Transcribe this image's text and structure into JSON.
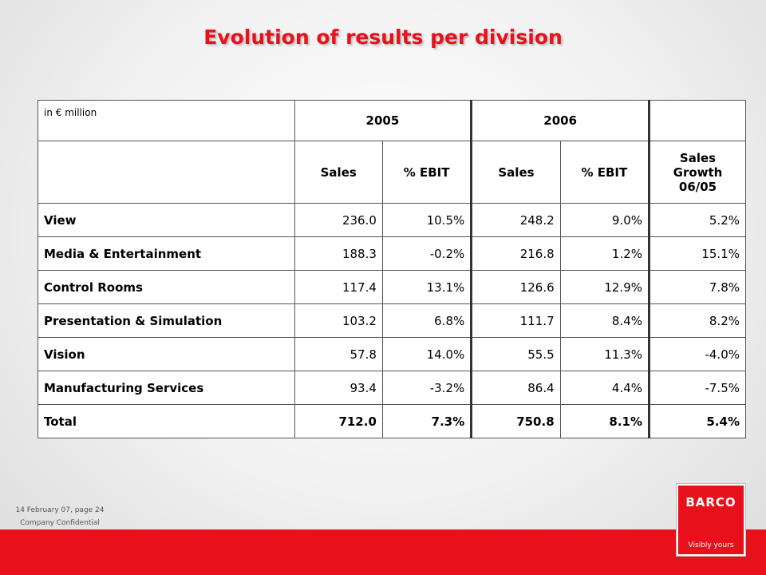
{
  "title": "Evolution of results per division",
  "table": {
    "unit_label": "in € million",
    "years": [
      "2005",
      "2006"
    ],
    "subheaders": [
      "Sales",
      "% EBIT",
      "Sales",
      "% EBIT",
      "Sales Growth 06/05"
    ],
    "rows": [
      {
        "label": "View",
        "sales_2005": "236.0",
        "ebit_2005": "10.5%",
        "sales_2006": "248.2",
        "ebit_2006": "9.0%",
        "growth": "5.2%"
      },
      {
        "label": "Media & Entertainment",
        "sales_2005": "188.3",
        "ebit_2005": "-0.2%",
        "sales_2006": "216.8",
        "ebit_2006": "1.2%",
        "growth": "15.1%"
      },
      {
        "label": "Control Rooms",
        "sales_2005": "117.4",
        "ebit_2005": "13.1%",
        "sales_2006": "126.6",
        "ebit_2006": "12.9%",
        "growth": "7.8%"
      },
      {
        "label": "Presentation & Simulation",
        "sales_2005": "103.2",
        "ebit_2005": "6.8%",
        "sales_2006": "111.7",
        "ebit_2006": "8.4%",
        "growth": "8.2%"
      },
      {
        "label": "Vision",
        "sales_2005": "57.8",
        "ebit_2005": "14.0%",
        "sales_2006": "55.5",
        "ebit_2006": "11.3%",
        "growth": "-4.0%"
      },
      {
        "label": "Manufacturing Services",
        "sales_2005": "93.4",
        "ebit_2005": "-3.2%",
        "sales_2006": "86.4",
        "ebit_2006": "4.4%",
        "growth": "-7.5%"
      }
    ],
    "total": {
      "label": "Total",
      "sales_2005": "712.0",
      "ebit_2005": "7.3%",
      "sales_2006": "750.8",
      "ebit_2006": "8.1%",
      "growth": "5.4%"
    }
  },
  "footer": {
    "date_page": "14 February 07, page 24",
    "confidential": "Company Confidential"
  },
  "logo": {
    "wordmark": "BARCO",
    "tagline": "Visibly yours"
  },
  "colors": {
    "accent": "#e8101a",
    "background": "#eeeeee"
  }
}
